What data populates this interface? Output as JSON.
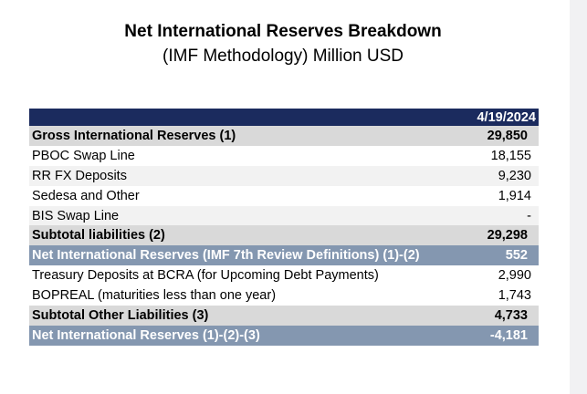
{
  "title": "Net International Reserves Breakdown",
  "subtitle": "(IMF Methodology) Million USD",
  "table": {
    "date_header": "4/19/2024",
    "rows": [
      {
        "label": "Gross International Reserves (1)",
        "value": "29,850"
      },
      {
        "label": "PBOC Swap Line",
        "value": "18,155"
      },
      {
        "label": "RR FX Deposits",
        "value": "9,230"
      },
      {
        "label": "Sedesa and Other",
        "value": "1,914"
      },
      {
        "label": "BIS Swap Line",
        "value": "-"
      },
      {
        "label": "Subtotal liabilities (2)",
        "value": "29,298"
      },
      {
        "label": "Net International Reserves (IMF 7th Review Definitions) (1)-(2)",
        "value": "552"
      },
      {
        "label": "Treasury Deposits at BCRA (for Upcoming Debt Payments)",
        "value": "2,990"
      },
      {
        "label": "BOPREAL (maturities less than one year)",
        "value": "1,743"
      },
      {
        "label": "Subtotal Other Liabilities (3)",
        "value": "4,733"
      },
      {
        "label": "Net International Reserves (1)-(2)-(3)",
        "value": "-4,181"
      }
    ]
  },
  "colors": {
    "header_bg": "#1b2b5e",
    "subtotal_bg": "#d9d9d9",
    "highlight_bg": "#8497b0",
    "alt_row_bg": "#f2f2f2"
  }
}
